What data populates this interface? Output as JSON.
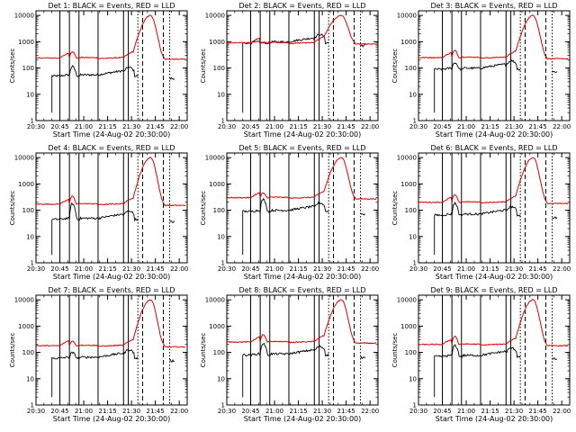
{
  "chart_data": {
    "type": "line",
    "panel_titles": [
      "Det 1: BLACK = Events, RED = LLD",
      "Det 2: BLACK = Events, RED = LLD",
      "Det 3: BLACK = Events, RED = LLD",
      "Det 4: BLACK = Events, RED = LLD",
      "Det 5: BLACK = Events, RED = LLD",
      "Det 6: BLACK = Events, RED = LLD",
      "Det 7: BLACK = Events, RED = LLD",
      "Det 8: BLACK = Events, RED = LLD",
      "Det 9: BLACK = Events, RED = LLD"
    ],
    "xlabel": "Start Time (24-Aug-02 20:30:00)",
    "ylabel": "Counts/sec",
    "x_tick_labels": [
      "20:30",
      "20:45",
      "21:00",
      "21:15",
      "21:30",
      "21:45",
      "22:00"
    ],
    "y_tick_labels": [
      "1",
      "10",
      "100",
      "1000",
      "10000"
    ],
    "y_scale": "log",
    "ylim": [
      1,
      15000
    ],
    "xlim_minutes_after_start": [
      0,
      95
    ],
    "solid_vertical_lines_min": [
      15,
      21,
      27,
      39,
      55,
      58
    ],
    "dashed_vertical_lines_min": [
      67,
      80
    ],
    "dotted_vertical_lines_min": [
      64,
      84
    ],
    "colors": {
      "events": "#000000",
      "lld": "#dd0000"
    },
    "panels": [
      {
        "lld_base": 240,
        "lld_bump": 500,
        "events_base": 50,
        "events_bump": 150
      },
      {
        "lld_base": 900,
        "lld_bump": 950,
        "events_base": 900,
        "events_bump": 900
      },
      {
        "lld_base": 250,
        "lld_bump": 550,
        "events_base": 90,
        "events_bump": 200
      },
      {
        "lld_base": 170,
        "lld_bump": 400,
        "events_base": 45,
        "events_bump": 250
      },
      {
        "lld_base": 300,
        "lld_bump": 500,
        "events_base": 90,
        "events_bump": 350
      },
      {
        "lld_base": 200,
        "lld_bump": 450,
        "events_base": 65,
        "events_bump": 250
      },
      {
        "lld_base": 180,
        "lld_bump": 300,
        "events_base": 60,
        "events_bump": 120
      },
      {
        "lld_base": 250,
        "lld_bump": 550,
        "events_base": 80,
        "events_bump": 300
      },
      {
        "lld_base": 200,
        "lld_bump": 500,
        "events_base": 70,
        "events_bump": 250
      }
    ],
    "flare_peak": 10000,
    "grid": false,
    "legend": "none"
  }
}
